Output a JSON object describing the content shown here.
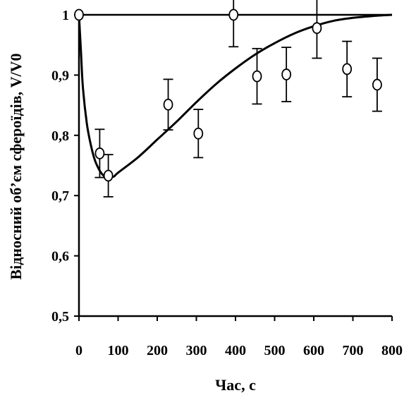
{
  "chart_data": {
    "type": "scatter",
    "xlabel": "Час, с",
    "ylabel": "Відносний об’єм сфероїдів,  V/V0",
    "xlim": [
      0,
      800
    ],
    "ylim": [
      0.5,
      1.0
    ],
    "x_ticks": [
      "0",
      "100",
      "200",
      "300",
      "400",
      "500",
      "600",
      "700",
      "800"
    ],
    "y_ticks": [
      "0,5",
      "0,6",
      "0,7",
      "0,8",
      "0,9",
      "1"
    ],
    "grid": false,
    "reference_line": {
      "y": 1.0,
      "x": [
        0,
        800
      ]
    },
    "points": [
      {
        "x": 0,
        "y": 1.0,
        "err": 0.0
      },
      {
        "x": 53,
        "y": 0.77,
        "err": 0.04
      },
      {
        "x": 75,
        "y": 0.733,
        "err": 0.035
      },
      {
        "x": 228,
        "y": 0.851,
        "err": 0.042
      },
      {
        "x": 305,
        "y": 0.803,
        "err": 0.04
      },
      {
        "x": 395,
        "y": 1.0,
        "err": 0.053
      },
      {
        "x": 455,
        "y": 0.898,
        "err": 0.046
      },
      {
        "x": 530,
        "y": 0.901,
        "err": 0.045
      },
      {
        "x": 608,
        "y": 0.978,
        "err": 0.05
      },
      {
        "x": 685,
        "y": 0.91,
        "err": 0.046
      },
      {
        "x": 762,
        "y": 0.884,
        "err": 0.044
      }
    ],
    "fit_curve": {
      "x": [
        0,
        5,
        10,
        20,
        30,
        40,
        50,
        60,
        70,
        80,
        90,
        100,
        150,
        200,
        250,
        300,
        350,
        400,
        450,
        500,
        550,
        600,
        650,
        700,
        750,
        800
      ],
      "y": [
        1.0,
        0.94,
        0.88,
        0.82,
        0.785,
        0.76,
        0.745,
        0.735,
        0.73,
        0.73,
        0.732,
        0.738,
        0.763,
        0.793,
        0.823,
        0.855,
        0.885,
        0.911,
        0.934,
        0.953,
        0.969,
        0.981,
        0.99,
        0.995,
        0.998,
        1.0
      ]
    }
  }
}
